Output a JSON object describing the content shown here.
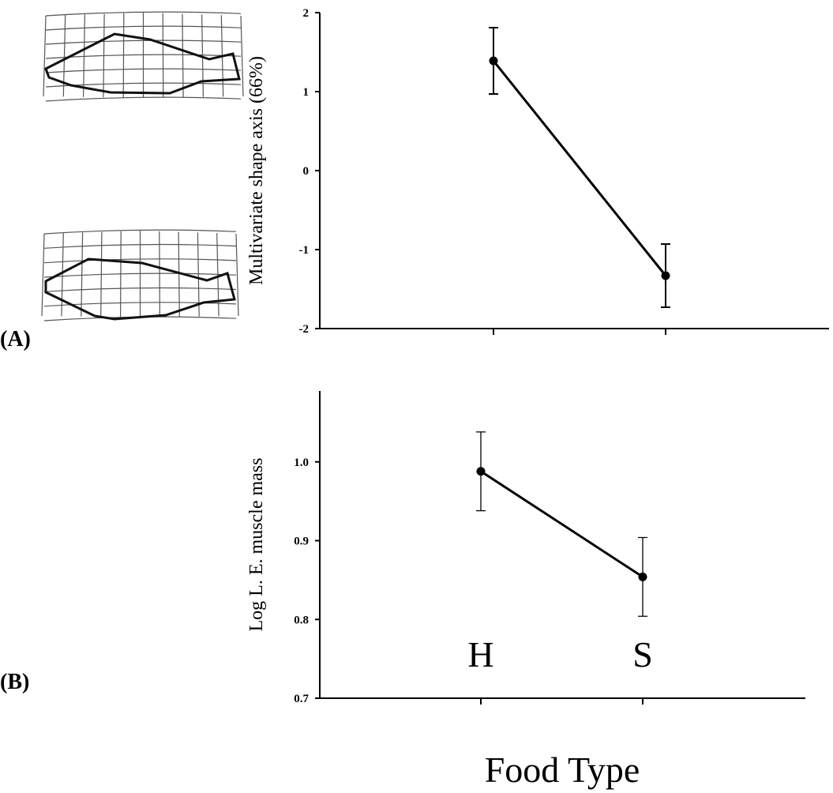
{
  "chart_data": [
    {
      "type": "line",
      "panel_label": "(A)",
      "ylabel": "Multivariate shape axis (66%)",
      "categories": [
        null,
        null
      ],
      "color": "#000000",
      "values": [
        1.39,
        -1.33
      ],
      "errors": [
        0.42,
        0.4
      ],
      "ylim": [
        -2,
        2
      ],
      "yticks": [
        -2,
        -1,
        0,
        1,
        2
      ]
    },
    {
      "type": "line",
      "panel_label": "(B)",
      "ylabel": "Log L. E. muscle mass",
      "xlabel": "Food Type",
      "categories": [
        "H",
        "S"
      ],
      "color": "#000000",
      "values": [
        0.988,
        0.854
      ],
      "errors": [
        0.05,
        0.05
      ],
      "ylim": [
        0.7,
        1.09
      ],
      "yticks": [
        0.7,
        0.8,
        0.9,
        {
          "value": 1,
          "label": "1.0"
        }
      ]
    }
  ]
}
